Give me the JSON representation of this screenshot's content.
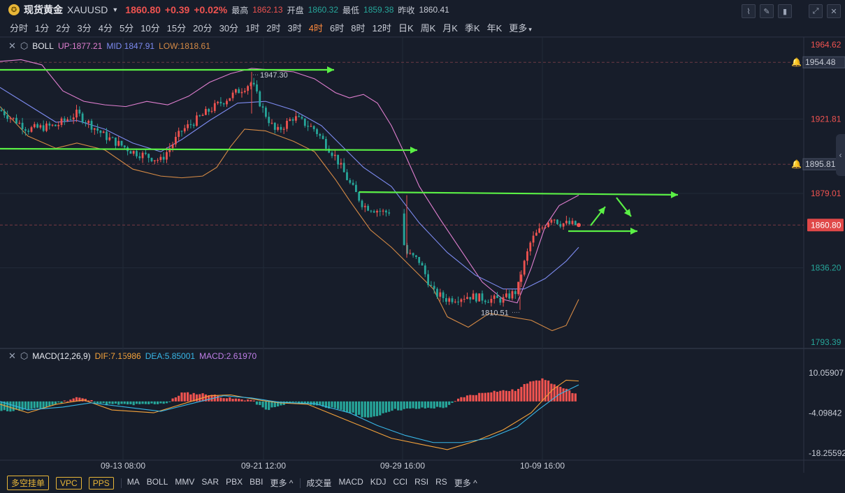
{
  "header": {
    "name": "现货黄金",
    "code": "XAUUSD",
    "price": "1860.80",
    "change": "+0.39",
    "change_pct": "+0.02%",
    "high_label": "最高",
    "high": "1862.13",
    "open_label": "开盘",
    "open": "1860.32",
    "low_label": "最低",
    "low": "1859.38",
    "prev_label": "昨收",
    "prev": "1860.41"
  },
  "tools": [
    "chart-icon",
    "pencil-icon",
    "candles-icon",
    "expand-icon",
    "close-icon"
  ],
  "periods": [
    "分时",
    "1分",
    "2分",
    "3分",
    "4分",
    "5分",
    "10分",
    "15分",
    "20分",
    "30分",
    "1时",
    "2时",
    "3时",
    "4时",
    "6时",
    "8时",
    "12时",
    "日K",
    "周K",
    "月K",
    "季K",
    "年K",
    "更多"
  ],
  "active_period": "4时",
  "boll": {
    "name": "BOLL",
    "up": "UP:1877.21",
    "mid": "MID:1847.91",
    "low": "LOW:1818.61"
  },
  "macd": {
    "name": "MACD(12,26,9)",
    "dif": "DIF:7.15986",
    "dea": "DEA:5.85001",
    "macd": "MACD:2.61970"
  },
  "price_axis": [
    "1964.62",
    "1954.48",
    "1921.81",
    "1895.81",
    "1879.01",
    "1860.80",
    "1836.20",
    "1793.39"
  ],
  "macd_axis": [
    "10.05907",
    "-4.09842",
    "-18.25592"
  ],
  "time_axis": [
    "09-13 08:00",
    "09-21 12:00",
    "09-29 16:00",
    "10-09 16:00"
  ],
  "annotations": {
    "high_mark": "1947.30",
    "low_mark": "1810.51"
  },
  "bottom": {
    "buttons": [
      "多空挂单",
      "VPC",
      "PPS"
    ],
    "main_indicators": [
      "MA",
      "BOLL",
      "MMV",
      "SAR",
      "PBX",
      "BBI",
      "更多"
    ],
    "sub_indicators": [
      "成交量",
      "MACD",
      "KDJ",
      "CCI",
      "RSI",
      "RS",
      "更多"
    ]
  },
  "colors": {
    "up": "#ef5350",
    "down": "#26a69a",
    "boll_up": "#e07fd0",
    "boll_mid": "#7d8bf0",
    "boll_low": "#d58a45",
    "arrow": "#5af045"
  }
}
